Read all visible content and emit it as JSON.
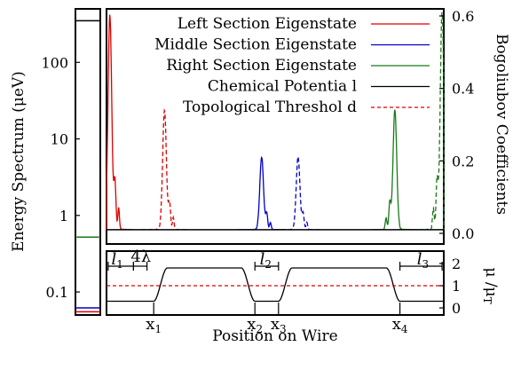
{
  "chart_data": [
    {
      "type": "line",
      "panel": "energy-spectrum-strip",
      "ylabel": "Energy Spectrum (μeV)",
      "yscale": "log",
      "ylim": [
        0.05,
        500
      ],
      "yticks": [
        "100",
        "10",
        "1",
        "0.1"
      ],
      "levels": [
        {
          "name": "Chemical Potential",
          "value": 350,
          "color": "#000000"
        },
        {
          "name": "Right Section Eigenstate",
          "value": 0.52,
          "color": "#1a7a1a"
        },
        {
          "name": "Middle Section Eigenstate",
          "value": 0.062,
          "color": "#0000cc"
        },
        {
          "name": "Left Section Eigenstate",
          "value": 0.055,
          "color": "#dd0000"
        }
      ]
    },
    {
      "type": "line",
      "panel": "bogoliubov-coefficients",
      "ylabel": "Bogoliubov Coefficients",
      "ylim": [
        0,
        0.6
      ],
      "yticks": [
        "0.6",
        "0.4",
        "0.2",
        "0.0"
      ],
      "xlim": [
        0,
        100
      ],
      "legend_position": "top-left",
      "legend": [
        "Left Section Eigenstate",
        "Middle Section Eigenstate",
        "Right Section Eigenstate",
        "Chemical Potentia l",
        "Topological Threshol d"
      ],
      "series": [
        {
          "name": "Left Section Eigenstate",
          "color": "#dd0000",
          "solid_peaks": [
            {
              "x": 1.0,
              "y": 0.59
            }
          ],
          "dashed_peaks": [
            {
              "x": 17.2,
              "y": 0.33
            }
          ]
        },
        {
          "name": "Middle Section Eigenstate",
          "color": "#0000cc",
          "solid_peaks": [
            {
              "x": 46.0,
              "y": 0.2
            }
          ],
          "dashed_peaks": [
            {
              "x": 56.8,
              "y": 0.2
            }
          ]
        },
        {
          "name": "Right Section Eigenstate",
          "color": "#1a7a1a",
          "solid_peaks": [
            {
              "x": 85.5,
              "y": 0.33
            }
          ],
          "dashed_peaks": [
            {
              "x": 99.5,
              "y": 0.6
            }
          ]
        }
      ]
    },
    {
      "type": "line",
      "panel": "chemical-potential-profile",
      "xlabel": "Position on Wire",
      "ylabel": "μ /μ",
      "ylabel_subscript": "T",
      "ylim": [
        0,
        2.4
      ],
      "yticks": [
        "2",
        "1",
        "0"
      ],
      "xlim": [
        0,
        100
      ],
      "threshold": 1.0,
      "profile": [
        {
          "x": 0,
          "y": 0.3
        },
        {
          "x": 3,
          "y": 0.3
        },
        {
          "x": 14,
          "y": 0.3
        },
        {
          "x": 18,
          "y": 1.8
        },
        {
          "x": 40,
          "y": 1.8
        },
        {
          "x": 44,
          "y": 0.3
        },
        {
          "x": 51,
          "y": 0.3
        },
        {
          "x": 55,
          "y": 1.8
        },
        {
          "x": 83,
          "y": 1.8
        },
        {
          "x": 87,
          "y": 0.3
        },
        {
          "x": 100,
          "y": 0.3
        }
      ],
      "annotations": {
        "l1": "l",
        "l1_sub": "1",
        "lambda": "4λ",
        "l2": "l",
        "l2_sub": "2",
        "l3": "l",
        "l3_sub": "3",
        "x1": "x",
        "x1_sub": "1",
        "x2": "x",
        "x2_sub": "2",
        "x3": "x",
        "x3_sub": "3",
        "x4": "x",
        "x4_sub": "4"
      }
    }
  ]
}
